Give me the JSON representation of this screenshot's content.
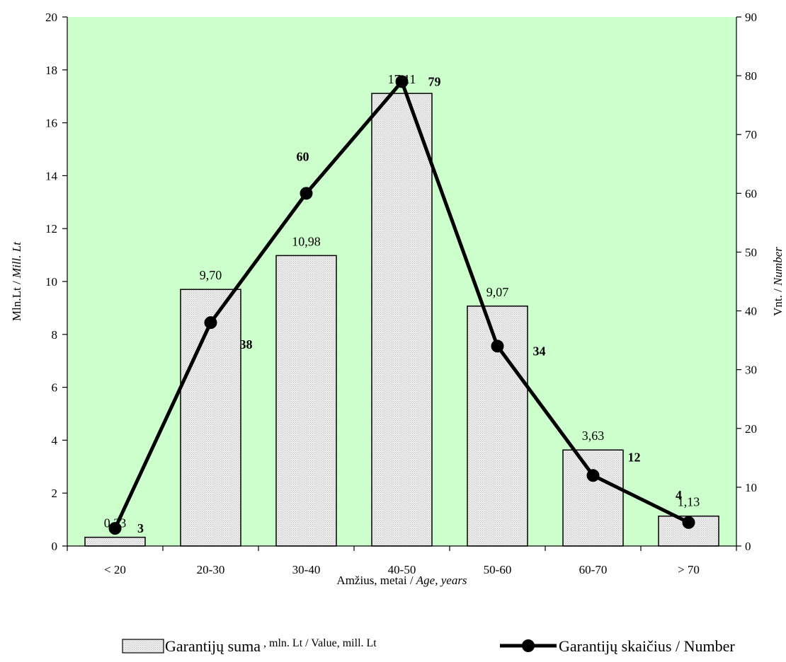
{
  "chart_data": {
    "type": "bar",
    "categories": [
      "< 20",
      "20-30",
      "30-40",
      "40-50",
      "50-60",
      "60-70",
      "> 70"
    ],
    "series": [
      {
        "name": "Garantijų suma , mln. Lt / Value, mill. Lt",
        "type": "bar",
        "axis": "left",
        "values": [
          0.33,
          9.7,
          10.98,
          17.11,
          9.07,
          3.63,
          1.13
        ],
        "labels": [
          "0,33",
          "9,70",
          "10,98",
          "17,11",
          "9,07",
          "3,63",
          "1,13"
        ]
      },
      {
        "name": "Garantijų skaičius / Number",
        "type": "line",
        "axis": "right",
        "values": [
          3,
          38,
          60,
          79,
          34,
          12,
          4
        ],
        "labels": [
          "3",
          "38",
          "60",
          "79",
          "34",
          "12",
          "4"
        ]
      }
    ],
    "xlabel": {
      "plain": "Amžius, metai / ",
      "italic": "Age, years"
    },
    "ylabel_left": {
      "plain": "Mln.Lt / ",
      "italic": "Mill. Lt"
    },
    "ylabel_right": {
      "plain": "Vnt. / ",
      "italic": "Number"
    },
    "ylim_left": [
      0,
      20
    ],
    "yticks_left": [
      0,
      2,
      4,
      6,
      8,
      10,
      12,
      14,
      16,
      18,
      20
    ],
    "ylim_right": [
      0,
      90
    ],
    "yticks_right": [
      0,
      10,
      20,
      30,
      40,
      50,
      60,
      70,
      80,
      90
    ],
    "grid": false,
    "legend_position": "bottom",
    "legend": {
      "bar_main": "Garantijų suma",
      "bar_sub": " , mln. Lt / Value, mill. Lt",
      "line": "Garantijų skaičius / Number"
    },
    "colors": {
      "plot_background": "#ccffcc",
      "bar_fill": "#e0e0e0",
      "line": "#000000"
    }
  }
}
